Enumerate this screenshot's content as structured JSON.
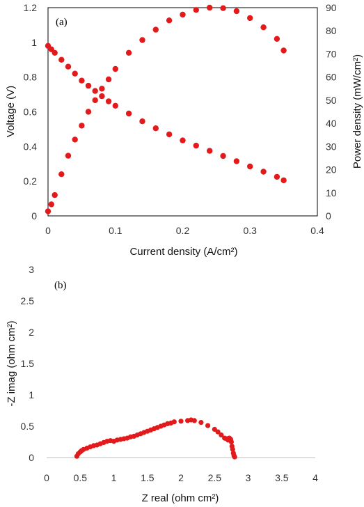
{
  "chart_data": [
    {
      "type": "scatter",
      "panel_label": "(a)",
      "xlabel": "Current density (A/cm²)",
      "ylabel": "Voltage (V)",
      "y2label": "Power density (mW/cm²)",
      "xlim": [
        0,
        0.4
      ],
      "ylim": [
        0,
        1.2
      ],
      "y2lim": [
        0,
        90
      ],
      "xticks": [
        "0",
        "0.1",
        "0.2",
        "0.3",
        "0.4"
      ],
      "yticks": [
        "0",
        "0.2",
        "0.4",
        "0.6",
        "0.8",
        "1",
        "1.2"
      ],
      "y2ticks": [
        "0",
        "10",
        "20",
        "30",
        "40",
        "50",
        "60",
        "70",
        "80",
        "90"
      ],
      "grid": false,
      "color": "#e31a1c",
      "series": [
        {
          "axis": "left",
          "x": [
            0.0,
            0.005,
            0.01,
            0.02,
            0.03,
            0.04,
            0.05,
            0.06,
            0.07,
            0.08,
            0.09,
            0.1,
            0.12,
            0.14,
            0.16,
            0.18,
            0.2,
            0.22,
            0.24,
            0.26,
            0.28,
            0.3,
            0.32,
            0.34,
            0.35
          ],
          "y": [
            0.98,
            0.96,
            0.94,
            0.9,
            0.86,
            0.82,
            0.78,
            0.75,
            0.72,
            0.69,
            0.66,
            0.635,
            0.59,
            0.545,
            0.505,
            0.47,
            0.435,
            0.405,
            0.375,
            0.345,
            0.315,
            0.285,
            0.255,
            0.225,
            0.205
          ]
        },
        {
          "axis": "right",
          "x": [
            0.0,
            0.005,
            0.01,
            0.02,
            0.03,
            0.04,
            0.05,
            0.06,
            0.07,
            0.08,
            0.09,
            0.1,
            0.12,
            0.14,
            0.16,
            0.18,
            0.2,
            0.22,
            0.24,
            0.26,
            0.28,
            0.3,
            0.32,
            0.34,
            0.35
          ],
          "y": [
            2,
            5,
            9,
            18,
            26,
            33,
            39,
            45,
            50,
            55,
            59,
            63.5,
            70.5,
            76,
            80.5,
            84.5,
            87,
            89,
            90,
            89.8,
            88.5,
            85.5,
            81.5,
            76.5,
            71.5
          ]
        }
      ]
    },
    {
      "type": "scatter",
      "panel_label": "(b)",
      "xlabel": "Z real (ohm cm²)",
      "ylabel": "-Z imag (ohm cm²)",
      "xlim": [
        0,
        4
      ],
      "ylim": [
        0,
        3
      ],
      "xticks": [
        "0",
        "0.5",
        "1",
        "1.5",
        "2",
        "2.5",
        "3",
        "3.5",
        "4"
      ],
      "yticks": [
        "0",
        "0.5",
        "1",
        "1.5",
        "2",
        "2.5",
        "3"
      ],
      "grid": false,
      "color": "#e31a1c",
      "series": [
        {
          "x": [
            0.45,
            0.47,
            0.5,
            0.52,
            0.55,
            0.6,
            0.65,
            0.7,
            0.75,
            0.8,
            0.85,
            0.9,
            0.95,
            1.0,
            1.05,
            1.1,
            1.15,
            1.2,
            1.25,
            1.3,
            1.35,
            1.4,
            1.45,
            1.5,
            1.55,
            1.6,
            1.65,
            1.7,
            1.75,
            1.8,
            1.85,
            1.9,
            2.0,
            2.1,
            2.15,
            2.2,
            2.3,
            2.4,
            2.5,
            2.55,
            2.6,
            2.65,
            2.68,
            2.7,
            2.72,
            2.73,
            2.74,
            2.75,
            2.76,
            2.77,
            2.78,
            2.79,
            2.8
          ],
          "y": [
            0.02,
            0.06,
            0.09,
            0.11,
            0.13,
            0.15,
            0.17,
            0.19,
            0.2,
            0.22,
            0.24,
            0.26,
            0.27,
            0.26,
            0.28,
            0.29,
            0.3,
            0.31,
            0.33,
            0.34,
            0.36,
            0.38,
            0.4,
            0.42,
            0.44,
            0.46,
            0.48,
            0.5,
            0.52,
            0.54,
            0.55,
            0.57,
            0.58,
            0.59,
            0.6,
            0.59,
            0.56,
            0.51,
            0.45,
            0.41,
            0.36,
            0.31,
            0.3,
            0.28,
            0.31,
            0.3,
            0.29,
            0.25,
            0.18,
            0.13,
            0.07,
            0.03,
            0.01
          ]
        }
      ]
    }
  ]
}
